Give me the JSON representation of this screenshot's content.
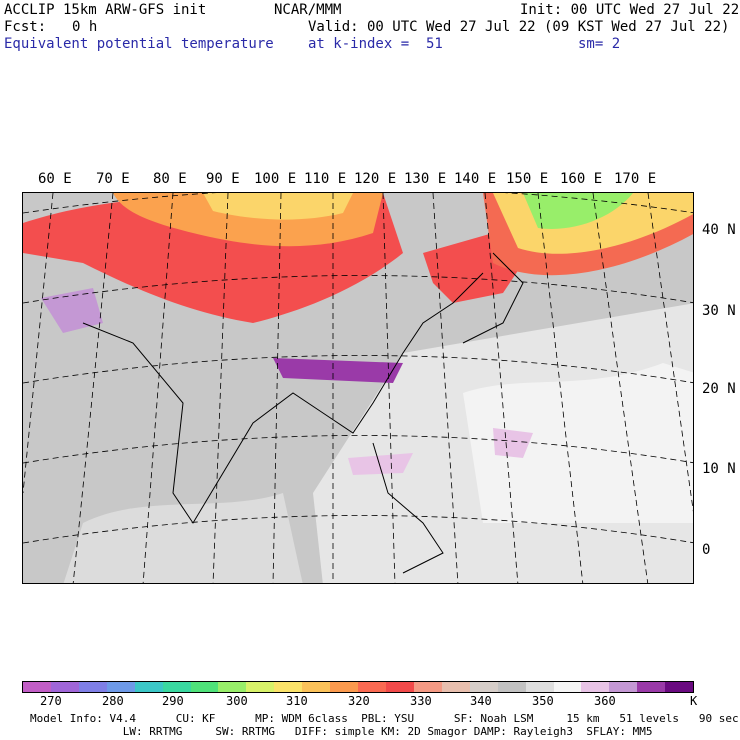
{
  "header": {
    "model": "ACCLIP 15km ARW-GFS init",
    "center": "NCAR/MMM",
    "init": "Init: 00 UTC Wed 27 Jul 22",
    "fcst_label": "Fcst:",
    "fcst_value": "0 h",
    "valid": "Valid: 00 UTC Wed 27 Jul 22 (09 KST Wed 27 Jul 22)",
    "field": "Equivalent potential temperature",
    "level": "at k-index =  51",
    "smooth": "sm= 2"
  },
  "map": {
    "lon_labels": [
      "60 E",
      "70 E",
      "80 E",
      "90 E",
      "100 E",
      "110 E",
      "120 E",
      "130 E",
      "140 E",
      "150 E",
      "160 E",
      "170 E"
    ],
    "lat_labels": [
      "40 N",
      "30 N",
      "20 N",
      "10 N",
      "0"
    ]
  },
  "colorbar": {
    "colors": [
      "#c25ec6",
      "#a066d8",
      "#7f7fe6",
      "#6e9ae8",
      "#3cc7c7",
      "#3ad8a0",
      "#4fe27a",
      "#98ee6a",
      "#d8f26a",
      "#fbe36a",
      "#fbc25a",
      "#fb9a4e",
      "#fa6a52",
      "#f24a4a",
      "#f49a84",
      "#e8bfae",
      "#d6cec9",
      "#c2c2c2",
      "#dedede",
      "#f5f5f5",
      "#e8c4e6",
      "#c498d4",
      "#9a3aa8",
      "#6a0a80"
    ],
    "ticks": [
      "270",
      "280",
      "290",
      "300",
      "310",
      "320",
      "330",
      "340",
      "350",
      "360"
    ],
    "unit": "K"
  },
  "footer": {
    "line1": "Model Info: V4.4      CU: KF      MP: WDM 6class  PBL: YSU      SF: Noah LSM     15 km   51 levels   90 sec",
    "line2": "              LW: RRTMG     SW: RRTMG   DIFF: simple KM: 2D Smagor DAMP: Rayleigh3  SFLAY: MM5"
  }
}
